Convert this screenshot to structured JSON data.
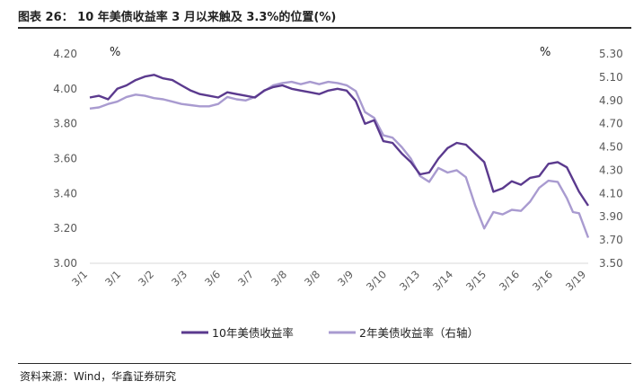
{
  "title": "图表 26：  10 年美债收益率 3 月以来触及 3.3%的位置(%)",
  "source": "资料来源：Wind，华鑫证券研究",
  "colors": {
    "series1": "#5b3a8e",
    "series2": "#a99bd0",
    "axis": "#d9d9d9",
    "tick": "#595959"
  },
  "chart_data": {
    "type": "line",
    "y_unit_left": "%",
    "y_unit_right": "%",
    "ylim_left": [
      3.0,
      4.2
    ],
    "ylim_right": [
      3.5,
      5.3
    ],
    "yticks_left": [
      "4.20",
      "4.00",
      "3.80",
      "3.60",
      "3.40",
      "3.20",
      "3.00"
    ],
    "yticks_right": [
      "5.30",
      "5.10",
      "4.90",
      "4.70",
      "4.50",
      "4.30",
      "4.10",
      "3.90",
      "3.70",
      "3.50"
    ],
    "x_tick_labels": [
      "3/1",
      "3/1",
      "3/2",
      "3/3",
      "3/6",
      "3/7",
      "3/8",
      "3/8",
      "3/9",
      "3/10",
      "3/13",
      "3/14",
      "3/15",
      "3/16",
      "3/16",
      "3/19"
    ],
    "x": [
      0,
      0.3,
      0.6,
      0.9,
      1.2,
      1.5,
      1.8,
      2.1,
      2.4,
      2.7,
      3.0,
      3.3,
      3.6,
      3.9,
      4.2,
      4.5,
      4.8,
      5.1,
      5.4,
      5.7,
      6.0,
      6.3,
      6.6,
      6.9,
      7.2,
      7.5,
      7.8,
      8.1,
      8.4,
      8.7,
      9.0,
      9.3,
      9.6,
      9.9,
      10.2,
      10.5,
      10.8,
      11.1,
      11.4,
      11.7,
      12.0,
      12.3,
      12.6,
      12.9,
      13.2,
      13.5,
      13.8,
      14.1,
      14.4,
      14.7,
      15.0,
      15.3,
      15.6,
      15.8,
      16.0,
      16.3
    ],
    "series": [
      {
        "name": "10年美债收益率",
        "axis": "left",
        "values": [
          3.95,
          3.96,
          3.94,
          4.0,
          4.02,
          4.05,
          4.07,
          4.08,
          4.06,
          4.05,
          4.02,
          3.99,
          3.97,
          3.96,
          3.95,
          3.98,
          3.97,
          3.96,
          3.95,
          3.99,
          4.01,
          4.02,
          4.0,
          3.99,
          3.98,
          3.97,
          3.99,
          4.0,
          3.99,
          3.93,
          3.8,
          3.82,
          3.7,
          3.69,
          3.63,
          3.58,
          3.51,
          3.52,
          3.6,
          3.66,
          3.69,
          3.68,
          3.63,
          3.58,
          3.41,
          3.43,
          3.47,
          3.45,
          3.49,
          3.5,
          3.57,
          3.58,
          3.55,
          3.48,
          3.41,
          3.33
        ]
      },
      {
        "name": "2年美债收益率（右轴）",
        "axis": "right",
        "values": [
          4.83,
          4.84,
          4.87,
          4.89,
          4.93,
          4.95,
          4.94,
          4.92,
          4.91,
          4.89,
          4.87,
          4.86,
          4.85,
          4.85,
          4.87,
          4.93,
          4.91,
          4.9,
          4.93,
          4.98,
          5.03,
          5.05,
          5.06,
          5.04,
          5.06,
          5.04,
          5.06,
          5.05,
          5.03,
          4.98,
          4.8,
          4.75,
          4.6,
          4.58,
          4.5,
          4.4,
          4.25,
          4.2,
          4.32,
          4.28,
          4.3,
          4.24,
          4.0,
          3.8,
          3.94,
          3.92,
          3.96,
          3.95,
          4.03,
          4.15,
          4.21,
          4.2,
          4.06,
          3.94,
          3.93,
          3.72
        ]
      }
    ],
    "legend_position": "bottom-center",
    "grid": false
  }
}
